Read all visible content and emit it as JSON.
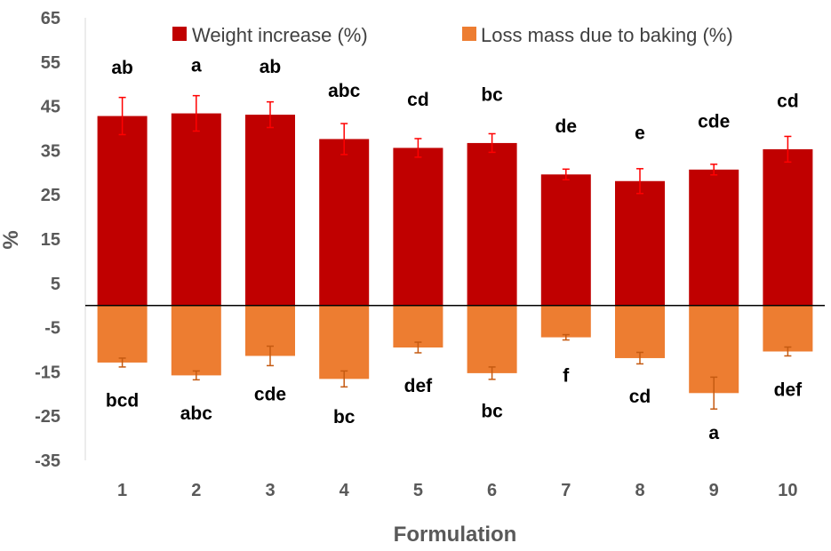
{
  "chart_data": {
    "type": "bar",
    "xlabel": "Formulation",
    "ylabel": "%",
    "ylim": [
      -35,
      65
    ],
    "yticks": [
      65,
      55,
      45,
      35,
      25,
      15,
      5,
      -5,
      -15,
      -25,
      -35
    ],
    "categories": [
      "1",
      "2",
      "3",
      "4",
      "5",
      "6",
      "7",
      "8",
      "9",
      "10"
    ],
    "legend_position": "top",
    "series": [
      {
        "name": "Weight increase (%)",
        "color": "#c00000",
        "error_color": "#ff0000",
        "values": [
          42.8,
          43.4,
          43.1,
          37.6,
          35.6,
          36.7,
          29.6,
          28.1,
          30.7,
          35.3
        ],
        "errors": [
          4.2,
          4.0,
          2.9,
          3.5,
          2.1,
          2.1,
          1.2,
          2.8,
          1.2,
          2.9
        ],
        "labels": [
          "ab",
          "a",
          "ab",
          "abc",
          "cd",
          "bc",
          "de",
          "e",
          "cde",
          "cd"
        ]
      },
      {
        "name": "Loss mass due to baking (%)",
        "color": "#ed7d31",
        "error_color": "#c55a11",
        "values": [
          -12.9,
          -15.8,
          -11.4,
          -16.6,
          -9.5,
          -15.3,
          -7.2,
          -11.9,
          -19.8,
          -10.4
        ],
        "errors": [
          1.0,
          1.0,
          2.2,
          1.8,
          1.2,
          1.4,
          0.6,
          1.3,
          3.6,
          1.0
        ],
        "labels": [
          "bcd",
          "abc",
          "cde",
          "bc",
          "def",
          "bc",
          "f",
          "cd",
          "a",
          "def"
        ]
      }
    ]
  }
}
